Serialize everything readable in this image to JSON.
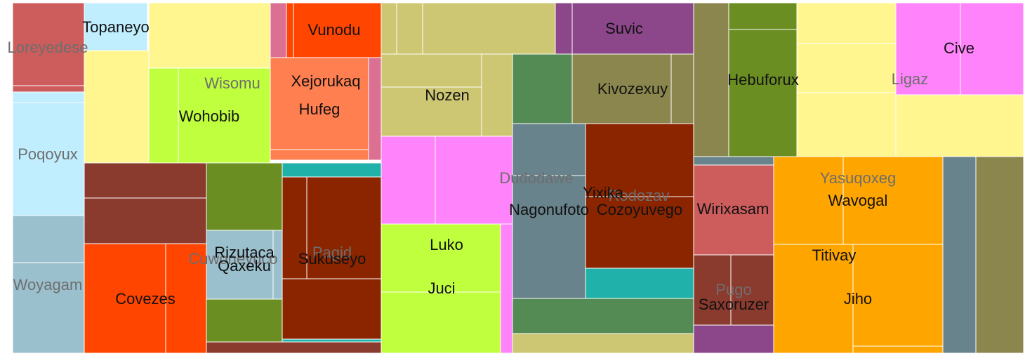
{
  "chart_data": {
    "type": "treemap",
    "title": "",
    "groups": [
      {
        "name": "Loreyedese",
        "color": "#CD5C5C"
      },
      {
        "name": "Poqoyux",
        "color": "#C0EEFF"
      },
      {
        "name": "Woyagam",
        "color": "#9BC0CD"
      },
      {
        "name": "Topaneyo",
        "color": "#C0EEFF"
      },
      {
        "name": "Wisomu",
        "color": "#FFF68F"
      },
      {
        "name": "Wohobib",
        "color": "#C0FF3E"
      },
      {
        "name": "Vunodu",
        "color": "#FF4500"
      },
      {
        "name": "Xejorukaq",
        "color": "#DB7093"
      },
      {
        "name": "Hufeg",
        "color": "#FF7F50"
      },
      {
        "name": "Cuwoneyuco",
        "color": "#8B3A2E"
      },
      {
        "name": "Covezes",
        "color": "#FF4500"
      },
      {
        "name": "Rizutaca",
        "color": "#6B8E23"
      },
      {
        "name": "Qaxeku",
        "color": "#9BC0CD"
      },
      {
        "name": "Pagid",
        "color": "#8B2500"
      },
      {
        "name": "Sukuseyo",
        "color": "#20B2AA"
      },
      {
        "name": "Nozen",
        "color": "#CDC673"
      },
      {
        "name": "Dudodawe",
        "color": "#FF83FA"
      },
      {
        "name": "Luko",
        "color": "#C0FF3E"
      },
      {
        "name": "Juci",
        "color": "#C0FF3E"
      },
      {
        "name": "Suvic",
        "color": "#8B4789"
      },
      {
        "name": "Kivozexuy",
        "color": "#8B864E"
      },
      {
        "name": "Nagonufoto",
        "color": "#68838B"
      },
      {
        "name": "Yixika",
        "color": "#548B54"
      },
      {
        "name": "Rodozav",
        "color": "#CDC673"
      },
      {
        "name": "Cozoyuvego",
        "color": "#8B2500"
      },
      {
        "name": "Hebuforux",
        "color": "#6B8E23"
      },
      {
        "name": "Wirixasam",
        "color": "#CD5C5C"
      },
      {
        "name": "Pugo",
        "color": "#8B4789"
      },
      {
        "name": "Saxoruzer",
        "color": "#8B3A2E"
      },
      {
        "name": "Ligaz",
        "color": "#FFF68F"
      },
      {
        "name": "Cive",
        "color": "#FF83FA"
      },
      {
        "name": "Yasuqoxeg",
        "color": "#FFA500"
      },
      {
        "name": "Wavogal",
        "color": "#FFA500"
      },
      {
        "name": "Titivay",
        "color": "#FFA500"
      },
      {
        "name": "Jiho",
        "color": "#FFA500"
      }
    ]
  }
}
